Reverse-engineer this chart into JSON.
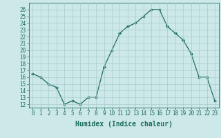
{
  "x": [
    0,
    1,
    2,
    3,
    4,
    5,
    6,
    7,
    8,
    9,
    10,
    11,
    12,
    13,
    14,
    15,
    16,
    17,
    18,
    19,
    20,
    21,
    22,
    23
  ],
  "y": [
    16.5,
    16.0,
    15.0,
    14.5,
    12.0,
    12.5,
    12.0,
    13.0,
    13.0,
    17.5,
    20.0,
    22.5,
    23.5,
    24.0,
    25.0,
    26.0,
    26.0,
    23.5,
    22.5,
    21.5,
    19.5,
    16.0,
    16.0,
    12.5
  ],
  "xlabel": "Humidex (Indice chaleur)",
  "xlim": [
    -0.5,
    23.5
  ],
  "ylim": [
    11.5,
    27
  ],
  "yticks": [
    12,
    13,
    14,
    15,
    16,
    17,
    18,
    19,
    20,
    21,
    22,
    23,
    24,
    25,
    26
  ],
  "xticks": [
    0,
    1,
    2,
    3,
    4,
    5,
    6,
    7,
    8,
    9,
    10,
    11,
    12,
    13,
    14,
    15,
    16,
    17,
    18,
    19,
    20,
    21,
    22,
    23
  ],
  "line_color": "#1a6b5a",
  "marker_color": "#1a6b5a",
  "bg_color": "#cce8e8",
  "grid_color": "#aacccc",
  "tick_color": "#1a6b5a",
  "label_color": "#1a6b5a",
  "tick_fontsize": 5.5,
  "xlabel_fontsize": 7.0
}
